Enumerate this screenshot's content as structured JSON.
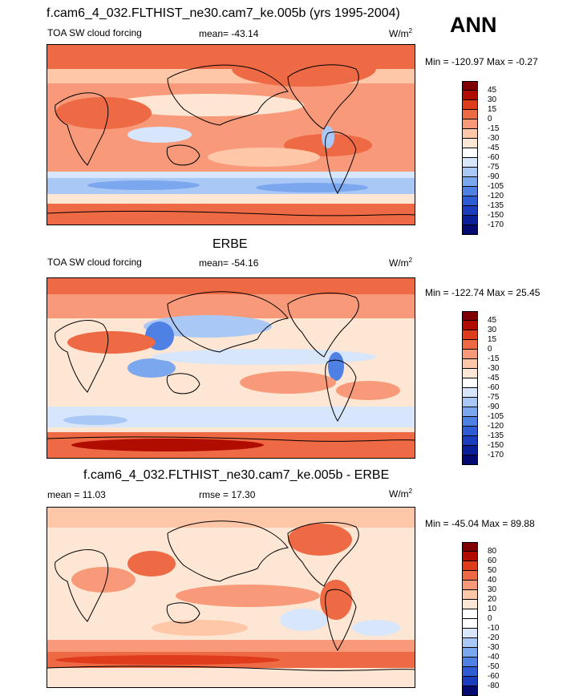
{
  "main_title": "f.cam6_4_032.FLTHIST_ne30.cam7_ke.005b (yrs 1995-2004)",
  "season": "ANN",
  "colors": {
    "continent_outline": "#000000",
    "bg_warm": "#ee6a44",
    "bg_cool": "#cfe0fa"
  },
  "chart_data": [
    {
      "type": "heatmap",
      "title": "",
      "left_label": "TOA SW cloud forcing",
      "stat_label": "mean= -43.14",
      "units_base": "W/m",
      "units_exp": "2",
      "minmax": "Min = -120.97 Max =  -0.27",
      "colorbar": {
        "levels": [
          "45",
          "30",
          "15",
          "0",
          "-15",
          "-30",
          "-45",
          "-60",
          "-75",
          "-90",
          "-105",
          "-120",
          "-135",
          "-150",
          "-170"
        ],
        "colors": [
          "#7f0000",
          "#b00d00",
          "#df3b1d",
          "#ee6a44",
          "#f89a79",
          "#fdc7a8",
          "#fde6d3",
          "#ffffff",
          "#d7e6fb",
          "#aac8f5",
          "#7ba7ee",
          "#4f80e3",
          "#2f5cd5",
          "#1a3cbd",
          "#0a1f98",
          "#030a70"
        ]
      }
    },
    {
      "type": "heatmap",
      "title": "ERBE",
      "left_label": "TOA SW cloud forcing",
      "stat_label": "mean= -54.16",
      "units_base": "W/m",
      "units_exp": "2",
      "minmax": "Min = -122.74 Max =  25.45",
      "colorbar": {
        "levels": [
          "45",
          "30",
          "15",
          "0",
          "-15",
          "-30",
          "-45",
          "-60",
          "-75",
          "-90",
          "-105",
          "-120",
          "-135",
          "-150",
          "-170"
        ],
        "colors": [
          "#7f0000",
          "#b00d00",
          "#df3b1d",
          "#ee6a44",
          "#f89a79",
          "#fdc7a8",
          "#fde6d3",
          "#ffffff",
          "#d7e6fb",
          "#aac8f5",
          "#7ba7ee",
          "#4f80e3",
          "#2f5cd5",
          "#1a3cbd",
          "#0a1f98",
          "#030a70"
        ]
      }
    },
    {
      "type": "heatmap",
      "title": "f.cam6_4_032.FLTHIST_ne30.cam7_ke.005b - ERBE",
      "left_label": "mean =  11.03",
      "stat_label": "rmse =  17.30",
      "units_base": "W/m",
      "units_exp": "2",
      "minmax": "Min = -45.04 Max =  89.88",
      "colorbar": {
        "levels": [
          "80",
          "60",
          "50",
          "40",
          "30",
          "20",
          "10",
          "0",
          "-10",
          "-20",
          "-30",
          "-40",
          "-50",
          "-60",
          "-80"
        ],
        "colors": [
          "#7f0000",
          "#b00d00",
          "#df3b1d",
          "#ee6a44",
          "#f89a79",
          "#fdc7a8",
          "#fde6d3",
          "#ffffff",
          "#ffffff",
          "#d7e6fb",
          "#aac8f5",
          "#7ba7ee",
          "#4f80e3",
          "#2f5cd5",
          "#1a3cbd",
          "#030a70"
        ]
      }
    }
  ]
}
